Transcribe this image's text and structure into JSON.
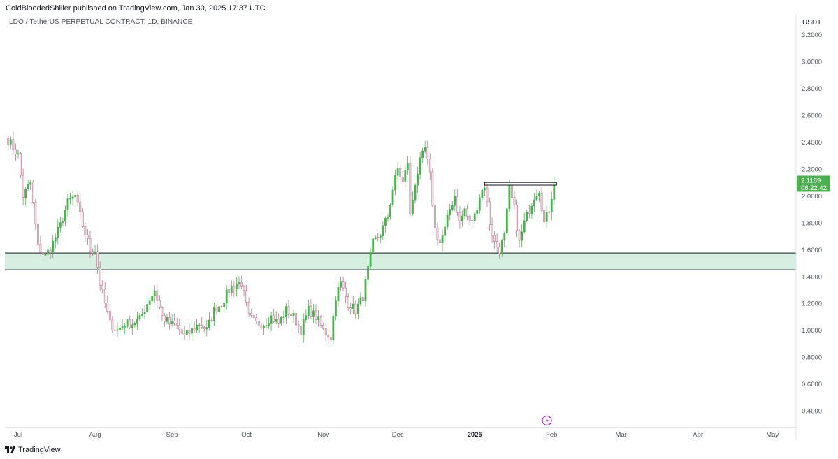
{
  "header": {
    "publish_line": "ColdBloodedShiller published on TradingView.com, Jan 30, 2025 17:37 UTC",
    "symbol_line": "LDO / TetherUS PERPETUAL CONTRACT, 1D, BINANCE"
  },
  "price_axis": {
    "currency": "USDT",
    "ticks": [
      "3.2000",
      "3.0000",
      "2.8000",
      "2.6000",
      "2.4000",
      "2.2000",
      "2.0000",
      "1.8000",
      "1.6000",
      "1.4000",
      "1.2000",
      "1.0000",
      "0.8000",
      "0.6000",
      "0.4000"
    ]
  },
  "last_price": {
    "value": "2.1189",
    "countdown": "06:22:42",
    "color": "#4caf50"
  },
  "footer": {
    "brand": "TradingView"
  },
  "colors": {
    "up": "#26a69a",
    "up_fill": "#4caf50",
    "down": "#b2798f",
    "zone": "#d7efe0"
  },
  "chart_data": {
    "type": "candlestick",
    "title": "LDO / TetherUS PERPETUAL CONTRACT, 1D, BINANCE",
    "ylabel": "USDT",
    "ylim": [
      0.3,
      3.35
    ],
    "x_ticks": [
      {
        "label": "Jul",
        "day": 0
      },
      {
        "label": "Aug",
        "day": 31
      },
      {
        "label": "Sep",
        "day": 62
      },
      {
        "label": "Oct",
        "day": 92
      },
      {
        "label": "Nov",
        "day": 123
      },
      {
        "label": "Dec",
        "day": 153
      },
      {
        "label": "2025",
        "day": 184,
        "bold": true
      },
      {
        "label": "Feb",
        "day": 215
      },
      {
        "label": "Mar",
        "day": 243
      },
      {
        "label": "Apr",
        "day": 274
      },
      {
        "label": "May",
        "day": 304
      }
    ],
    "first_day": -4,
    "support_zone": {
      "low": 1.45,
      "high": 1.575
    },
    "resistance_box": {
      "low": 2.08,
      "high": 2.1,
      "from_day": 188,
      "to_day": 217
    },
    "anchors": [
      [
        -4,
        2.42
      ],
      [
        0,
        2.3
      ],
      [
        2,
        2.0
      ],
      [
        5,
        2.1
      ],
      [
        8,
        1.62
      ],
      [
        11,
        1.55
      ],
      [
        14,
        1.65
      ],
      [
        17,
        1.78
      ],
      [
        20,
        1.95
      ],
      [
        23,
        2.0
      ],
      [
        26,
        1.78
      ],
      [
        29,
        1.6
      ],
      [
        31,
        1.6
      ],
      [
        33,
        1.35
      ],
      [
        35,
        1.2
      ],
      [
        37,
        1.05
      ],
      [
        40,
        1.0
      ],
      [
        43,
        1.05
      ],
      [
        46,
        1.05
      ],
      [
        49,
        1.08
      ],
      [
        52,
        1.2
      ],
      [
        55,
        1.3
      ],
      [
        58,
        1.1
      ],
      [
        61,
        1.05
      ],
      [
        64,
        1.03
      ],
      [
        67,
        0.95
      ],
      [
        70,
        1.0
      ],
      [
        73,
        1.05
      ],
      [
        76,
        1.0
      ],
      [
        79,
        1.15
      ],
      [
        82,
        1.2
      ],
      [
        85,
        1.3
      ],
      [
        88,
        1.35
      ],
      [
        90,
        1.35
      ],
      [
        93,
        1.1
      ],
      [
        96,
        1.05
      ],
      [
        99,
        1.05
      ],
      [
        102,
        1.1
      ],
      [
        105,
        1.05
      ],
      [
        108,
        1.15
      ],
      [
        111,
        1.1
      ],
      [
        114,
        1.0
      ],
      [
        117,
        1.15
      ],
      [
        120,
        1.1
      ],
      [
        123,
        1.0
      ],
      [
        126,
        0.95
      ],
      [
        128,
        1.25
      ],
      [
        130,
        1.35
      ],
      [
        133,
        1.2
      ],
      [
        136,
        1.15
      ],
      [
        139,
        1.25
      ],
      [
        141,
        1.45
      ],
      [
        143,
        1.65
      ],
      [
        146,
        1.72
      ],
      [
        149,
        1.85
      ],
      [
        151,
        2.05
      ],
      [
        153,
        2.2
      ],
      [
        155,
        2.1
      ],
      [
        157,
        2.25
      ],
      [
        158,
        1.85
      ],
      [
        160,
        2.1
      ],
      [
        162,
        2.25
      ],
      [
        164,
        2.35
      ],
      [
        166,
        2.15
      ],
      [
        168,
        1.75
      ],
      [
        170,
        1.65
      ],
      [
        172,
        1.75
      ],
      [
        174,
        1.9
      ],
      [
        176,
        2.0
      ],
      [
        178,
        1.8
      ],
      [
        180,
        1.9
      ],
      [
        182,
        1.8
      ],
      [
        184,
        1.85
      ],
      [
        186,
        2.0
      ],
      [
        188,
        2.08
      ],
      [
        190,
        1.8
      ],
      [
        192,
        1.65
      ],
      [
        194,
        1.6
      ],
      [
        196,
        1.7
      ],
      [
        198,
        2.05
      ],
      [
        200,
        1.9
      ],
      [
        202,
        1.65
      ],
      [
        204,
        1.8
      ],
      [
        206,
        1.9
      ],
      [
        208,
        2.0
      ],
      [
        210,
        2.05
      ],
      [
        212,
        1.8
      ],
      [
        214,
        1.9
      ],
      [
        216,
        2.1
      ]
    ]
  }
}
